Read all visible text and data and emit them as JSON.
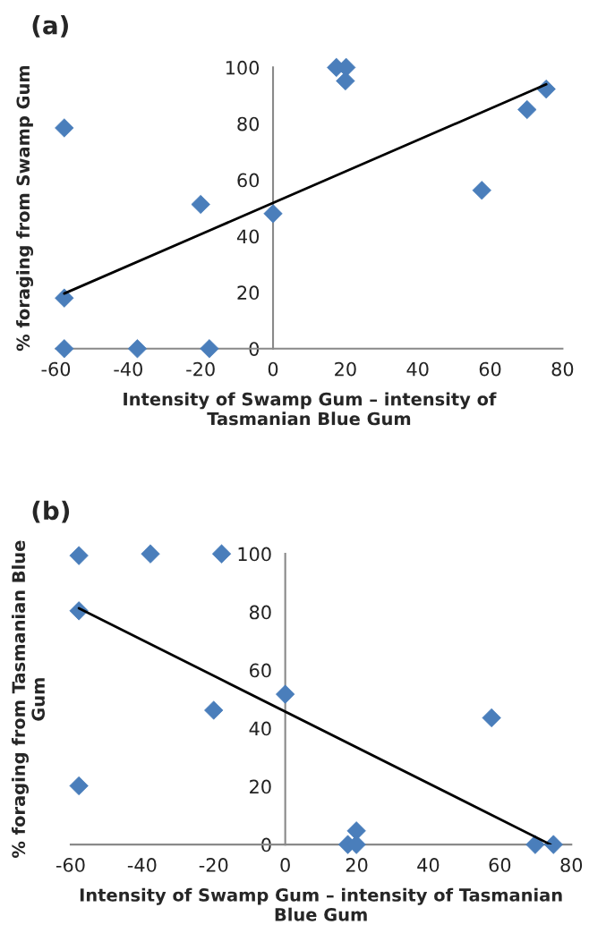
{
  "chart_data": [
    {
      "type": "scatter",
      "title": "(a)",
      "xlabel": "Intensity of Swamp Gum – intensity of\nTasmanian Blue Gum",
      "ylabel": "% foraging from Swamp Gum",
      "xlim": [
        -60,
        80
      ],
      "xticks": [
        -60,
        -40,
        -20,
        0,
        20,
        40,
        60,
        80
      ],
      "ylim": [
        0,
        100
      ],
      "yticks": [
        0,
        20,
        40,
        60,
        80,
        100
      ],
      "grid": false,
      "marker": "diamond",
      "series": [
        {
          "color": "#4a7ebb",
          "x": [
            -57.7,
            -57.7,
            -57.7,
            -37.5,
            -20,
            -17.6,
            0,
            17.5,
            20.2,
            20,
            57.7,
            70.2,
            75.5
          ],
          "values": [
            78.5,
            18,
            0,
            0,
            51.3,
            0,
            48,
            100,
            100,
            95.2,
            56.3,
            85,
            92.3
          ]
        },
        {
          "type": "line",
          "color": "#000000",
          "marker": "none",
          "line_style": "solid",
          "x": [
            -57.7,
            75.5
          ],
          "values": [
            19.6,
            94
          ]
        }
      ]
    },
    {
      "type": "scatter",
      "title": "(b)",
      "xlabel": "Intensity of Swamp Gum – intensity of Tasmanian\nBlue Gum",
      "ylabel": "% foraging from Tasmanian Blue\nGum",
      "xlim": [
        -60,
        80
      ],
      "xticks": [
        -60,
        -40,
        -20,
        0,
        20,
        40,
        60,
        80
      ],
      "ylim": [
        0,
        100
      ],
      "yticks": [
        0,
        20,
        40,
        60,
        80,
        100
      ],
      "grid": false,
      "marker": "diamond",
      "series": [
        {
          "color": "#4a7ebb",
          "x": [
            -57.7,
            -57.7,
            -57.7,
            -37.7,
            -17.8,
            -20,
            0,
            17.5,
            19.9,
            19.9,
            57.7,
            69.9,
            75
          ],
          "values": [
            99.4,
            80.4,
            20.2,
            100,
            100,
            46.2,
            51.7,
            0,
            4.7,
            0,
            43.6,
            0,
            0
          ]
        },
        {
          "type": "line",
          "color": "#000000",
          "marker": "none",
          "line_style": "solid",
          "x": [
            -57.7,
            74.2
          ],
          "values": [
            81.3,
            0
          ]
        }
      ]
    }
  ]
}
